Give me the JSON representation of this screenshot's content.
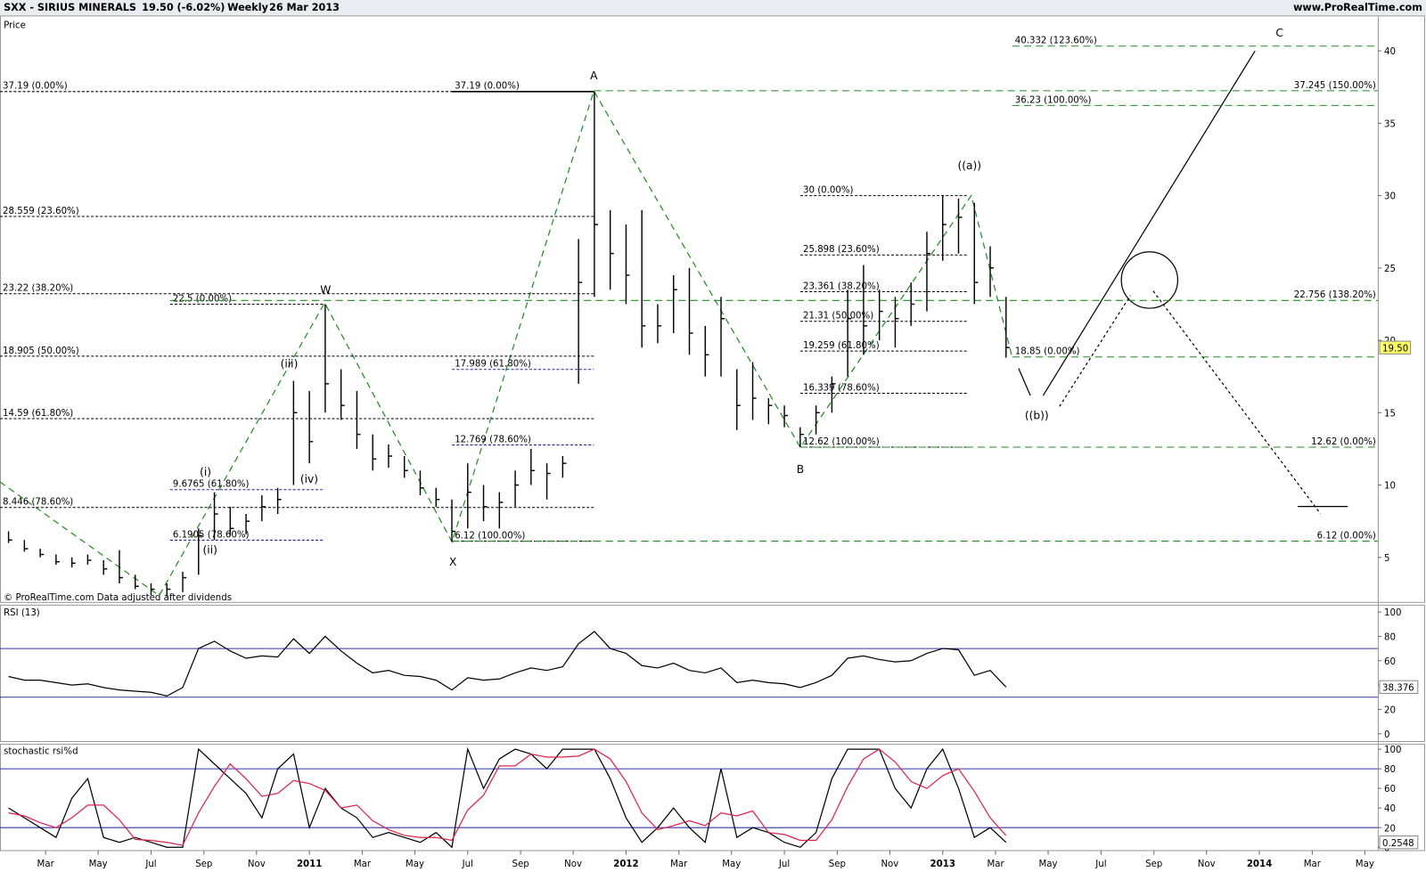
{
  "header": {
    "symbol": "SXX - SIRIUS MINERALS",
    "quote": "19.50 (-6.02%)",
    "period": "Weekly",
    "date": "26 Mar 2013",
    "site": "www.ProRealTime.com"
  },
  "chart_data": [
    {
      "type": "ohlc",
      "title": "Price",
      "note": "© ProRealTime.com  Data adjusted after dividends",
      "color": "#000000",
      "x": [
        2010.05,
        2010.1,
        2010.15,
        2010.2,
        2010.25,
        2010.3,
        2010.35,
        2010.4,
        2010.45,
        2010.5,
        2010.55,
        2010.6,
        2010.65,
        2010.7,
        2010.75,
        2010.8,
        2010.85,
        2010.9,
        2010.95,
        2011,
        2011.05,
        2011.1,
        2011.15,
        2011.2,
        2011.25,
        2011.3,
        2011.35,
        2011.4,
        2011.45,
        2011.5,
        2011.55,
        2011.6,
        2011.65,
        2011.7,
        2011.75,
        2011.8,
        2011.85,
        2011.9,
        2011.95,
        2012,
        2012.05,
        2012.1,
        2012.15,
        2012.2,
        2012.25,
        2012.3,
        2012.35,
        2012.4,
        2012.45,
        2012.5,
        2012.55,
        2012.6,
        2012.65,
        2012.7,
        2012.75,
        2012.8,
        2012.85,
        2012.9,
        2012.95,
        2013,
        2013.05,
        2013.1,
        2013.15,
        2013.2
      ],
      "high": [
        6.8,
        6.2,
        5.6,
        5.2,
        5.0,
        5.2,
        4.8,
        5.5,
        3.8,
        3.2,
        3.2,
        4.0,
        7.0,
        9.5,
        8.5,
        8.0,
        9.3,
        9.8,
        17.2,
        16.5,
        22.5,
        18.0,
        16.5,
        13.5,
        12.8,
        12.0,
        11.0,
        9.8,
        9.0,
        11.5,
        10.0,
        9.5,
        11.0,
        12.5,
        11.5,
        12.0,
        27.0,
        37.19,
        29.0,
        28.0,
        29.0,
        22.5,
        24.5,
        25.0,
        21.0,
        23.0,
        18.0,
        18.5,
        16.0,
        15.5,
        14.0,
        15.5,
        17.5,
        23.5,
        25.2,
        23.5,
        23.0,
        24.0,
        27.5,
        30.0,
        29.8,
        29.5,
        26.5,
        23.0
      ],
      "low": [
        6.0,
        5.4,
        5.0,
        4.5,
        4.3,
        4.5,
        3.8,
        3.2,
        2.8,
        2.4,
        2.3,
        2.6,
        3.8,
        6.2,
        6.5,
        6.6,
        7.5,
        8.0,
        10.0,
        11.5,
        15.0,
        14.5,
        12.5,
        11.0,
        11.2,
        10.5,
        9.3,
        8.5,
        6.1,
        7.0,
        7.5,
        7.0,
        8.5,
        10.0,
        9.0,
        10.5,
        17.0,
        23.0,
        23.5,
        22.5,
        19.5,
        19.8,
        20.5,
        19.0,
        17.5,
        17.5,
        13.8,
        14.5,
        14.2,
        14.0,
        12.62,
        13.5,
        15.0,
        17.5,
        19.0,
        20.0,
        19.5,
        21.0,
        22.0,
        25.5,
        26.0,
        22.5,
        23.0,
        18.8
      ],
      "close": [
        6.2,
        5.6,
        5.2,
        4.7,
        4.6,
        4.8,
        4.2,
        3.6,
        3.0,
        2.8,
        2.8,
        3.6,
        6.5,
        8.0,
        7.0,
        7.5,
        8.5,
        9.0,
        15.0,
        13.0,
        17.0,
        15.5,
        13.5,
        11.8,
        12.0,
        11.0,
        9.8,
        9.0,
        6.8,
        9.5,
        8.5,
        8.8,
        10.0,
        11.0,
        10.8,
        11.5,
        24.0,
        28.0,
        26.0,
        24.5,
        21.0,
        21.0,
        23.5,
        20.5,
        19.0,
        21.5,
        15.5,
        16.0,
        15.5,
        14.8,
        13.5,
        15.0,
        17.0,
        21.5,
        21.0,
        22.0,
        21.5,
        22.5,
        26.0,
        28.0,
        28.5,
        24.0,
        25.0,
        19.5
      ],
      "xlim": [
        2010.023,
        2014.374
      ],
      "ylim": [
        1.92,
        42.45
      ],
      "yticks": [
        5,
        10,
        15,
        20,
        25,
        30,
        35,
        40
      ],
      "last": {
        "value": 19.5,
        "label": "19.50"
      },
      "last_color": "#ffff66",
      "fib_lines": [
        {
          "label": "37.19 (0.00%)",
          "value": 37.19,
          "color": "#000000",
          "style": "dashed"
        },
        {
          "label": "28.559 (23.60%)",
          "value": 28.559,
          "color": "#000000",
          "style": "dashed"
        },
        {
          "label": "23.22 (38.20%)",
          "value": 23.22,
          "color": "#000000",
          "style": "dashed"
        },
        {
          "label": "18.905 (50.00%)",
          "value": 18.905,
          "color": "#000000",
          "style": "dashed"
        },
        {
          "label": "14.59 (61.80%)",
          "value": 14.59,
          "color": "#000000",
          "style": "dashed"
        },
        {
          "label": "8.446 (78.60%)",
          "value": 8.446,
          "color": "#000000",
          "style": "dashed"
        },
        {
          "label": "22.5 (0.00%)",
          "value": 22.5,
          "color": "#000000",
          "style": "dashed"
        },
        {
          "label": "9.6765 (61.80%)",
          "value": 9.6765,
          "color": "#2222aa",
          "style": "dashed"
        },
        {
          "label": "6.1905 (78.60%)",
          "value": 6.1905,
          "color": "#2222aa",
          "style": "dashed"
        },
        {
          "label": "37.19 (0.00%)",
          "value": 37.19,
          "color": "#000000",
          "style": "solid"
        },
        {
          "label": "17.989 (61.80%)",
          "value": 17.989,
          "color": "#2222aa",
          "style": "dashed"
        },
        {
          "label": "12.769 (78.60%)",
          "value": 12.769,
          "color": "#2222aa",
          "style": "dashed"
        },
        {
          "label": "6.12 (100.00%)",
          "value": 6.12,
          "color": "#000000",
          "style": "dashed"
        },
        {
          "label": "30 (0.00%)",
          "value": 30,
          "color": "#000000",
          "style": "dashed"
        },
        {
          "label": "25.898 (23.60%)",
          "value": 25.898,
          "color": "#000000",
          "style": "dashed"
        },
        {
          "label": "23.361 (38.20%)",
          "value": 23.361,
          "color": "#000000",
          "style": "dashed"
        },
        {
          "label": "21.31 (50.00%)",
          "value": 21.31,
          "color": "#000000",
          "style": "dashed"
        },
        {
          "label": "19.259 (61.80%)",
          "value": 19.259,
          "color": "#000000",
          "style": "dashed"
        },
        {
          "label": "16.339 (78.60%)",
          "value": 16.339,
          "color": "#000000",
          "style": "dashed"
        },
        {
          "label": "12.62 (100.00%)",
          "value": 12.62,
          "color": "#000000",
          "style": "dashed"
        },
        {
          "label": "40.332 (123.60%)",
          "value": 40.332,
          "color": "#228b22",
          "style": "dashed"
        },
        {
          "label": "37.245 (150.00%)",
          "value": 37.245,
          "color": "#228b22",
          "style": "dashed"
        },
        {
          "label": "36.23 (100.00%)",
          "value": 36.23,
          "color": "#228b22",
          "style": "dashed"
        },
        {
          "label": "22.756 (138.20%)",
          "value": 22.756,
          "color": "#228b22",
          "style": "dashed"
        },
        {
          "label": "18.85 (0.00%)",
          "value": 18.85,
          "color": "#228b22",
          "style": "dashed"
        },
        {
          "label": "12.62 (0.00%)",
          "value": 12.62,
          "color": "#228b22",
          "style": "dashed"
        },
        {
          "label": "6.12 (0.00%)",
          "value": 6.12,
          "color": "#228b22",
          "style": "dashed"
        }
      ],
      "wave_labels": [
        "W",
        "A",
        "X",
        "B",
        "C",
        "((a))",
        "((b))",
        "(i)",
        "(ii)",
        "(iii)",
        "(iv)"
      ]
    },
    {
      "type": "line",
      "title": "RSI (13)",
      "color": "#000000",
      "x": [
        2010.05,
        2010.1,
        2010.15,
        2010.2,
        2010.25,
        2010.3,
        2010.35,
        2010.4,
        2010.45,
        2010.5,
        2010.55,
        2010.6,
        2010.65,
        2010.7,
        2010.75,
        2010.8,
        2010.85,
        2010.9,
        2010.95,
        2011,
        2011.05,
        2011.1,
        2011.15,
        2011.2,
        2011.25,
        2011.3,
        2011.35,
        2011.4,
        2011.45,
        2011.5,
        2011.55,
        2011.6,
        2011.65,
        2011.7,
        2011.75,
        2011.8,
        2011.85,
        2011.9,
        2011.95,
        2012,
        2012.05,
        2012.1,
        2012.15,
        2012.2,
        2012.25,
        2012.3,
        2012.35,
        2012.4,
        2012.45,
        2012.5,
        2012.55,
        2012.6,
        2012.65,
        2012.7,
        2012.75,
        2012.8,
        2012.85,
        2012.9,
        2012.95,
        2013,
        2013.05,
        2013.1,
        2013.15,
        2013.2
      ],
      "values": [
        47,
        44,
        44,
        42,
        40,
        41,
        38,
        36,
        35,
        34,
        31,
        38,
        70,
        76,
        68,
        62,
        64,
        63,
        78,
        66,
        80,
        68,
        58,
        50,
        52,
        48,
        47,
        44,
        36,
        46,
        44,
        45,
        50,
        54,
        52,
        55,
        74,
        84,
        70,
        66,
        56,
        54,
        58,
        52,
        50,
        54,
        42,
        44,
        42,
        41,
        38,
        42,
        48,
        62,
        64,
        61,
        59,
        60,
        66,
        70,
        69,
        48,
        52,
        38.376
      ],
      "xlim": [
        2010.023,
        2014.374
      ],
      "ylim": [
        -6,
        106
      ],
      "yticks": [
        0,
        20,
        40,
        60,
        80,
        100
      ],
      "levels": [
        30,
        70
      ],
      "level_color": "#3333aa",
      "last_value": 38.376
    },
    {
      "type": "line",
      "title": "stochastic rsi",
      "x": [
        2010.05,
        2010.1,
        2010.15,
        2010.2,
        2010.25,
        2010.3,
        2010.35,
        2010.4,
        2010.45,
        2010.5,
        2010.55,
        2010.6,
        2010.65,
        2010.7,
        2010.75,
        2010.8,
        2010.85,
        2010.9,
        2010.95,
        2011,
        2011.05,
        2011.1,
        2011.15,
        2011.2,
        2011.25,
        2011.3,
        2011.35,
        2011.4,
        2011.45,
        2011.5,
        2011.55,
        2011.6,
        2011.65,
        2011.7,
        2011.75,
        2011.8,
        2011.85,
        2011.9,
        2011.95,
        2012,
        2012.05,
        2012.1,
        2012.15,
        2012.2,
        2012.25,
        2012.3,
        2012.35,
        2012.4,
        2012.45,
        2012.5,
        2012.55,
        2012.6,
        2012.65,
        2012.7,
        2012.75,
        2012.8,
        2012.85,
        2012.9,
        2012.95,
        2013,
        2013.05,
        2013.1,
        2013.15,
        2013.2
      ],
      "series": [
        {
          "name": "stochastic rsi",
          "color": "#000000",
          "values": [
            40,
            30,
            20,
            10,
            50,
            70,
            10,
            5,
            10,
            5,
            0,
            0,
            100,
            85,
            70,
            55,
            30,
            80,
            95,
            20,
            60,
            40,
            30,
            10,
            15,
            10,
            5,
            15,
            0,
            100,
            60,
            90,
            100,
            95,
            80,
            100,
            100,
            100,
            70,
            30,
            5,
            20,
            40,
            20,
            5,
            80,
            10,
            20,
            15,
            5,
            0,
            15,
            70,
            100,
            100,
            100,
            60,
            40,
            80,
            100,
            60,
            10,
            20,
            5
          ]
        },
        {
          "name": "%d",
          "color": "#e0204a",
          "values": [
            35,
            32,
            25,
            20,
            30,
            43,
            43,
            28,
            8,
            7,
            5,
            2,
            35,
            62,
            85,
            70,
            52,
            55,
            68,
            65,
            58,
            40,
            43,
            27,
            18,
            12,
            10,
            10,
            7,
            38,
            53,
            83,
            83,
            95,
            92,
            92,
            93,
            100,
            90,
            67,
            35,
            18,
            22,
            27,
            22,
            35,
            32,
            37,
            15,
            13,
            7,
            7,
            28,
            62,
            90,
            100,
            87,
            67,
            60,
            73,
            80,
            57,
            30,
            12
          ]
        }
      ],
      "xlim": [
        2010.023,
        2014.374
      ],
      "ylim": [
        -3,
        105.5
      ],
      "yticks": [
        0,
        20,
        40,
        60,
        80,
        100
      ],
      "levels": [
        20,
        80
      ],
      "level_color": "#3333aa",
      "last_value": 0.2548,
      "xticks": [
        {
          "value": 2010.167,
          "label": "Mar"
        },
        {
          "value": 2010.333,
          "label": "May"
        },
        {
          "value": 2010.5,
          "label": "Jul"
        },
        {
          "value": 2010.667,
          "label": "Sep"
        },
        {
          "value": 2010.833,
          "label": "Nov"
        },
        2011,
        {
          "value": 2011.167,
          "label": "Mar"
        },
        {
          "value": 2011.333,
          "label": "May"
        },
        {
          "value": 2011.5,
          "label": "Jul"
        },
        {
          "value": 2011.667,
          "label": "Sep"
        },
        {
          "value": 2011.833,
          "label": "Nov"
        },
        2012,
        {
          "value": 2012.167,
          "label": "Mar"
        },
        {
          "value": 2012.333,
          "label": "May"
        },
        {
          "value": 2012.5,
          "label": "Jul"
        },
        {
          "value": 2012.667,
          "label": "Sep"
        },
        {
          "value": 2012.833,
          "label": "Nov"
        },
        2013,
        {
          "value": 2013.167,
          "label": "Mar"
        },
        {
          "value": 2013.333,
          "label": "May"
        },
        {
          "value": 2013.5,
          "label": "Jul"
        },
        {
          "value": 2013.667,
          "label": "Sep"
        },
        {
          "value": 2013.833,
          "label": "Nov"
        },
        2014,
        {
          "value": 2014.167,
          "label": "Mar"
        },
        {
          "value": 2014.333,
          "label": "May"
        }
      ]
    }
  ]
}
